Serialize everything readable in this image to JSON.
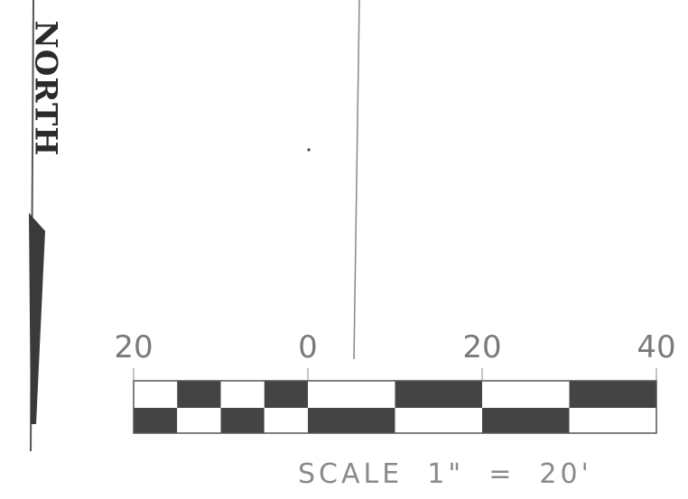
{
  "north": {
    "label": "NORTH"
  },
  "scale_bar": {
    "ticks": [
      {
        "label": "20",
        "value": -20
      },
      {
        "label": "0",
        "value": 0
      },
      {
        "label": "20",
        "value": 20
      },
      {
        "label": "40",
        "value": 40
      }
    ],
    "range": [
      -20,
      40
    ],
    "left_subdivisions": 4,
    "right_subdivisions": 2,
    "caption": "SCALE  1\"  =  20'"
  },
  "colors": {
    "ink": "#2a2a2a",
    "gray": "#7a7a7a",
    "fill": "#444444"
  }
}
